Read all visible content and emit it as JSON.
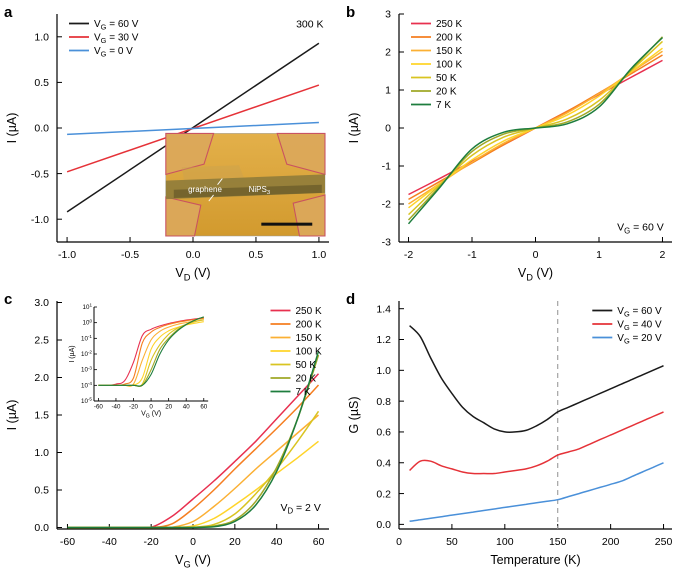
{
  "figure": {
    "background": "#ffffff"
  },
  "chart_data": [
    {
      "id": "a",
      "label": "a",
      "type": "line",
      "xlabel": "V_{D} (V)",
      "ylabel": "I (µA)",
      "xlim": [
        -1.08,
        1.08
      ],
      "ylim": [
        -1.25,
        1.25
      ],
      "x_ticks": {
        "values": [
          -1.0,
          -0.5,
          0.0,
          0.5,
          1.0
        ],
        "labels": [
          "-1.0",
          "-0.5",
          "0.0",
          "0.5",
          "1.0"
        ]
      },
      "y_ticks": {
        "values": [
          -1.0,
          -0.5,
          0.0,
          0.5,
          1.0
        ],
        "labels": [
          "-1.0",
          "-0.5",
          "0.0",
          "0.5",
          "1.0"
        ]
      },
      "series": [
        {
          "name": "V_{G} = 60 V",
          "color": "#1a1a1a",
          "x": [
            -1,
            1
          ],
          "y": [
            -0.92,
            0.93
          ]
        },
        {
          "name": "V_{G} = 30 V",
          "color": "#e53238",
          "x": [
            -1,
            1
          ],
          "y": [
            -0.48,
            0.47
          ]
        },
        {
          "name": "V_{G} = 0 V",
          "color": "#4a90d9",
          "x": [
            -1,
            1
          ],
          "y": [
            -0.07,
            0.06
          ]
        }
      ],
      "legend": {
        "position": "top-left"
      },
      "annotations": [
        {
          "text": "300 K",
          "fx": 0.98,
          "fy": 0.06,
          "anchor": "end"
        }
      ],
      "micrograph": {
        "labels": {
          "graphene": "graphene",
          "nips3": "NiPS_{3}"
        },
        "colors": {
          "background": "#d29a2e",
          "background_light": "#e3b04a",
          "electrode": "#dca85a",
          "electrode_outline": "#c94f62",
          "flake": "#8f7c3a",
          "flake_dark": "#6f5f2c",
          "graphene_tint": "#caa24f",
          "label": "#ffffff",
          "scalebar": "#111111"
        }
      }
    },
    {
      "id": "b",
      "label": "b",
      "type": "line",
      "xlabel": "V_{D} (V)",
      "ylabel": "I (µA)",
      "xlim": [
        -2.15,
        2.15
      ],
      "ylim": [
        -3,
        3
      ],
      "x_ticks": {
        "values": [
          -2,
          -1,
          0,
          1,
          2
        ],
        "labels": [
          "-2",
          "-1",
          "0",
          "1",
          "2"
        ]
      },
      "y_ticks": {
        "values": [
          -3,
          -2,
          -1,
          0,
          1,
          2,
          3
        ],
        "labels": [
          "-3",
          "-2",
          "-1",
          "0",
          "1",
          "2",
          "3"
        ]
      },
      "series": [
        {
          "name": "250 K",
          "color": "#e8304f",
          "x": [
            -2,
            -1.5,
            -1,
            -0.5,
            0,
            0.5,
            1,
            1.5,
            2
          ],
          "y": [
            -1.75,
            -1.32,
            -0.88,
            -0.44,
            0,
            0.44,
            0.88,
            1.33,
            1.78
          ]
        },
        {
          "name": "200 K",
          "color": "#f57e20",
          "x": [
            -2,
            -1.5,
            -1,
            -0.5,
            0,
            0.5,
            1,
            1.5,
            2
          ],
          "y": [
            -1.88,
            -1.4,
            -0.92,
            -0.44,
            0,
            0.44,
            0.92,
            1.42,
            1.92
          ]
        },
        {
          "name": "150 K",
          "color": "#fbb034",
          "x": [
            -2,
            -1.5,
            -1,
            -0.5,
            0,
            0.5,
            1,
            1.5,
            2
          ],
          "y": [
            -2.0,
            -1.45,
            -0.9,
            -0.4,
            0,
            0.4,
            0.9,
            1.46,
            2.02
          ]
        },
        {
          "name": "100 K",
          "color": "#ffd42a",
          "x": [
            -2,
            -1.5,
            -1,
            -0.5,
            0,
            0.5,
            1,
            1.5,
            2
          ],
          "y": [
            -2.1,
            -1.46,
            -0.84,
            -0.34,
            0,
            0.34,
            0.84,
            1.47,
            2.1
          ]
        },
        {
          "name": "50 K",
          "color": "#d9c421",
          "x": [
            -2,
            -1.5,
            -1,
            -0.5,
            0,
            0.5,
            1,
            1.5,
            2
          ],
          "y": [
            -2.28,
            -1.48,
            -0.72,
            -0.24,
            0,
            0.24,
            0.72,
            1.5,
            2.28
          ]
        },
        {
          "name": "20 K",
          "color": "#9fa827",
          "x": [
            -2,
            -1.5,
            -1,
            -0.5,
            0,
            0.5,
            1,
            1.5,
            2
          ],
          "y": [
            -2.42,
            -1.52,
            -0.62,
            -0.16,
            0,
            0.16,
            0.62,
            1.52,
            2.4
          ]
        },
        {
          "name": "7 K",
          "color": "#1e7d3e",
          "x": [
            -2,
            -1.5,
            -1,
            -0.5,
            0,
            0.5,
            1,
            1.5,
            2
          ],
          "y": [
            -2.52,
            -1.55,
            -0.55,
            -0.11,
            0,
            0.11,
            0.55,
            1.55,
            2.38
          ]
        }
      ],
      "legend": {
        "position": "top-left"
      },
      "annotations": [
        {
          "text": "V_{G} = 60 V",
          "fx": 0.97,
          "fy": 0.95,
          "anchor": "end"
        }
      ]
    },
    {
      "id": "c",
      "label": "c",
      "type": "line",
      "clamp_zero": true,
      "xlabel": "V_{G} (V)",
      "ylabel": "I (µA)",
      "xlim": [
        -65,
        65
      ],
      "ylim": [
        -0.02,
        3.02
      ],
      "x_ticks": {
        "values": [
          -60,
          -40,
          -20,
          0,
          20,
          40,
          60
        ],
        "labels": [
          "-60",
          "-40",
          "-20",
          "0",
          "20",
          "40",
          "60"
        ]
      },
      "y_ticks": {
        "values": [
          0.0,
          0.5,
          1.0,
          1.5,
          2.0,
          2.5,
          3.0
        ],
        "labels": [
          "0.0",
          "0.5",
          "1.0",
          "1.5",
          "2.0",
          "2.5",
          "3.0"
        ]
      },
      "series": [
        {
          "name": "250 K",
          "color": "#e8304f",
          "x": [
            -60,
            -50,
            -40,
            -30,
            -20,
            -10,
            0,
            10,
            20,
            30,
            40,
            50,
            60
          ],
          "y": [
            0.0001,
            0.0001,
            0.00012,
            0.0002,
            0.003,
            0.15,
            0.38,
            0.62,
            0.88,
            1.15,
            1.45,
            1.75,
            2.05
          ]
        },
        {
          "name": "200 K",
          "color": "#f57e20",
          "x": [
            -60,
            -50,
            -40,
            -30,
            -20,
            -10,
            0,
            10,
            20,
            30,
            40,
            50,
            60
          ],
          "y": [
            0.0001,
            0.0001,
            0.0001,
            0.00012,
            0.0003,
            0.05,
            0.25,
            0.5,
            0.78,
            1.05,
            1.32,
            1.6,
            1.9
          ]
        },
        {
          "name": "150 K",
          "color": "#fbb034",
          "x": [
            -60,
            -50,
            -40,
            -30,
            -20,
            -10,
            0,
            10,
            20,
            30,
            40,
            50,
            60
          ],
          "y": [
            0.0001,
            0.0001,
            0.0001,
            0.0001,
            0.00012,
            0.004,
            0.08,
            0.28,
            0.52,
            0.78,
            1.02,
            1.26,
            1.5
          ]
        },
        {
          "name": "100 K",
          "color": "#ffd42a",
          "x": [
            -60,
            -50,
            -40,
            -30,
            -20,
            -10,
            0,
            10,
            20,
            30,
            40,
            50,
            60
          ],
          "y": [
            0.0001,
            0.0001,
            0.0001,
            0.0001,
            0.0001,
            0.0003,
            0.02,
            0.12,
            0.3,
            0.5,
            0.72,
            0.93,
            1.15
          ]
        },
        {
          "name": "50 K",
          "color": "#d9c421",
          "x": [
            -60,
            -50,
            -40,
            -30,
            -20,
            -10,
            0,
            10,
            20,
            30,
            40,
            50,
            60
          ],
          "y": [
            0.0001,
            0.0001,
            0.0001,
            0.0001,
            0.0001,
            0.00012,
            0.004,
            0.04,
            0.18,
            0.45,
            0.78,
            1.15,
            1.55
          ]
        },
        {
          "name": "20 K",
          "color": "#9fa827",
          "x": [
            -60,
            -50,
            -40,
            -30,
            -20,
            -10,
            0,
            10,
            20,
            30,
            40,
            50,
            60
          ],
          "y": [
            0.0001,
            0.0001,
            0.0001,
            0.0001,
            0.0001,
            0.0001,
            0.001,
            0.02,
            0.1,
            0.35,
            0.8,
            1.45,
            2.3
          ]
        },
        {
          "name": "7 K",
          "color": "#1e7d3e",
          "x": [
            -60,
            -50,
            -40,
            -30,
            -20,
            -10,
            0,
            10,
            20,
            30,
            40,
            50,
            60
          ],
          "y": [
            0.0001,
            0.0001,
            0.0001,
            0.0001,
            0.0001,
            0.0001,
            0.0005,
            0.01,
            0.08,
            0.3,
            0.75,
            1.45,
            2.35
          ]
        }
      ],
      "legend": {
        "position": "top-right"
      },
      "annotations": [
        {
          "text": "V_{D} = 2 V",
          "fx": 0.97,
          "fy": 0.92,
          "anchor": "end"
        }
      ],
      "inset_log": {
        "xlim": [
          -65,
          65
        ],
        "exp_lim": [
          -5,
          1
        ],
        "x_ticks": {
          "values": [
            -60,
            -40,
            -20,
            0,
            20,
            40,
            60
          ],
          "labels": [
            "-60",
            "-40",
            "-20",
            "0",
            "20",
            "40",
            "60"
          ]
        },
        "y_ticks": {
          "exponents": [
            1,
            0,
            -1,
            -2,
            -3,
            -4,
            -5
          ],
          "labels": [
            "10^{1}",
            "10^{0}",
            "10^{-1}",
            "10^{-2}",
            "10^{-3}",
            "10^{-4}",
            "10^{-5}"
          ]
        },
        "xlabel": "V_{G} (V)",
        "ylabel": "I (µA)"
      }
    },
    {
      "id": "d",
      "label": "d",
      "type": "line",
      "xlabel": "Temperature (K)",
      "ylabel": "G (µS)",
      "xlim": [
        0,
        258
      ],
      "ylim": [
        -0.03,
        1.45
      ],
      "x_ticks": {
        "values": [
          0,
          50,
          100,
          150,
          200,
          250
        ],
        "labels": [
          "0",
          "50",
          "100",
          "150",
          "200",
          "250"
        ]
      },
      "y_ticks": {
        "values": [
          0.0,
          0.2,
          0.4,
          0.6,
          0.8,
          1.0,
          1.2,
          1.4
        ],
        "labels": [
          "0.0",
          "0.2",
          "0.4",
          "0.6",
          "0.8",
          "1.0",
          "1.2",
          "1.4"
        ]
      },
      "vlines": [
        {
          "x": 150,
          "color": "#9a9a9a",
          "dash": "5,4"
        }
      ],
      "series": [
        {
          "name": "V_{G} = 60 V",
          "color": "#1a1a1a",
          "x": [
            10,
            20,
            30,
            40,
            50,
            60,
            70,
            80,
            90,
            100,
            110,
            120,
            130,
            140,
            150,
            160,
            170,
            180,
            190,
            200,
            210,
            220,
            230,
            240,
            250
          ],
          "y": [
            1.29,
            1.22,
            1.08,
            0.95,
            0.85,
            0.76,
            0.7,
            0.66,
            0.62,
            0.6,
            0.6,
            0.61,
            0.64,
            0.68,
            0.73,
            0.76,
            0.79,
            0.82,
            0.85,
            0.88,
            0.91,
            0.94,
            0.97,
            1.0,
            1.03
          ]
        },
        {
          "name": "V_{G} = 40 V",
          "color": "#e53238",
          "x": [
            10,
            20,
            30,
            40,
            50,
            60,
            70,
            80,
            90,
            100,
            110,
            120,
            130,
            140,
            150,
            160,
            170,
            180,
            190,
            200,
            210,
            220,
            230,
            240,
            250
          ],
          "y": [
            0.35,
            0.41,
            0.41,
            0.38,
            0.36,
            0.34,
            0.33,
            0.33,
            0.33,
            0.34,
            0.35,
            0.36,
            0.38,
            0.41,
            0.45,
            0.47,
            0.49,
            0.52,
            0.55,
            0.58,
            0.61,
            0.64,
            0.67,
            0.7,
            0.73
          ]
        },
        {
          "name": "V_{G} = 20 V",
          "color": "#4a90d9",
          "x": [
            10,
            20,
            30,
            40,
            50,
            60,
            70,
            80,
            90,
            100,
            110,
            120,
            130,
            140,
            150,
            160,
            170,
            180,
            190,
            200,
            210,
            220,
            230,
            240,
            250
          ],
          "y": [
            0.02,
            0.03,
            0.04,
            0.05,
            0.06,
            0.07,
            0.08,
            0.09,
            0.1,
            0.11,
            0.12,
            0.13,
            0.14,
            0.15,
            0.16,
            0.18,
            0.2,
            0.22,
            0.24,
            0.26,
            0.28,
            0.31,
            0.34,
            0.37,
            0.4
          ]
        }
      ],
      "legend": {
        "position": "top-right"
      }
    }
  ]
}
